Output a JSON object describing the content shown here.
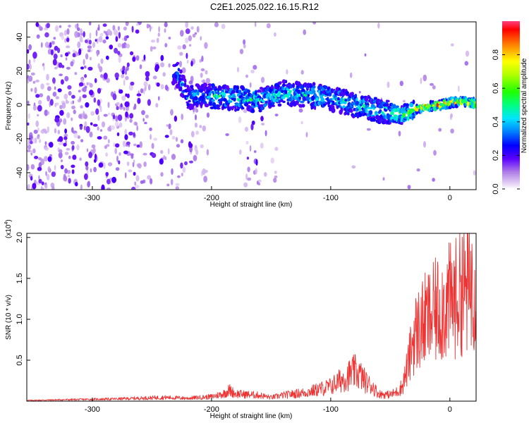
{
  "title": "C2E1.2025.022.16.15.R12",
  "chart_data": [
    {
      "type": "heatmap",
      "xlabel": "Height of straight line (km)",
      "ylabel": "Frequency (Hz)",
      "xlim": [
        -355,
        22
      ],
      "ylim": [
        -50,
        49
      ],
      "xticks": [
        -300,
        -200,
        -100,
        0
      ],
      "yticks": [
        -40,
        -20,
        0,
        20,
        40
      ],
      "colorbar": {
        "label": "Normalized spectral amplitude",
        "range": [
          0,
          1
        ],
        "ticks": [
          0.0,
          0.2,
          0.4,
          0.6,
          0.8
        ],
        "colormap": "rainbow-purple-to-red"
      },
      "ridge": {
        "x": [
          -230,
          -220,
          -200,
          -180,
          -160,
          -140,
          -120,
          -100,
          -80,
          -60,
          -40,
          -30,
          -20,
          -10,
          0,
          10,
          20
        ],
        "y": [
          20,
          5,
          5,
          4,
          3,
          7,
          6,
          4,
          0,
          -3,
          -6,
          -3,
          -1,
          0,
          1,
          2,
          1
        ]
      }
    },
    {
      "type": "line",
      "xlabel": "Height of straight line (km)",
      "ylabel": "SNR (10 * v/v)",
      "yscale_label": "(x10",
      "yscale_exp": "4",
      "yscale_close": ")",
      "xlim": [
        -355,
        22
      ],
      "ylim": [
        0,
        20500
      ],
      "xticks": [
        -300,
        -200,
        -100,
        0
      ],
      "yticks": [
        5000,
        10000,
        15000,
        20000
      ],
      "ytick_labels": [
        "0.5",
        "1.0",
        "1.5",
        "2.0"
      ],
      "color": "#ee3333",
      "series": [
        {
          "x": [
            -355,
            -340,
            -320,
            -300,
            -280,
            -260,
            -240,
            -220,
            -200,
            -190,
            -185,
            -180,
            -170,
            -160,
            -150,
            -140,
            -130,
            -120,
            -110,
            -100,
            -95,
            -90,
            -85,
            -80,
            -75,
            -70,
            -65,
            -60,
            -55,
            -50,
            -45,
            -40,
            -35,
            -30,
            -25,
            -20,
            -15,
            -10,
            -5,
            0,
            5,
            10,
            15,
            20
          ],
          "y": [
            100,
            150,
            200,
            250,
            300,
            400,
            500,
            400,
            600,
            1000,
            1500,
            1000,
            900,
            800,
            500,
            800,
            1000,
            1200,
            1600,
            2000,
            2500,
            3000,
            3500,
            4000,
            3500,
            2500,
            2000,
            1000,
            900,
            900,
            1200,
            2000,
            5000,
            9000,
            10000,
            11000,
            11500,
            12500,
            13000,
            13500,
            14000,
            15500,
            15000,
            17000
          ]
        }
      ]
    }
  ]
}
